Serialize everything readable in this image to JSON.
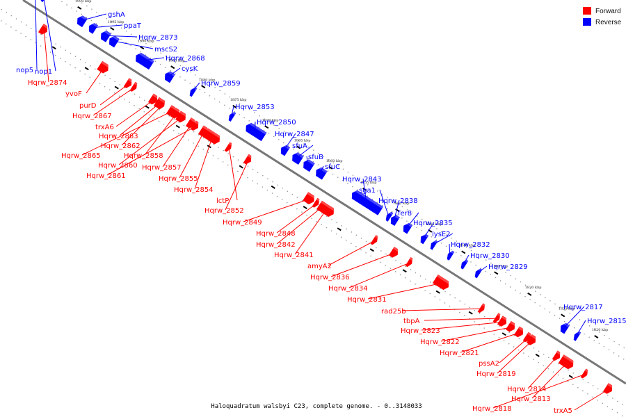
{
  "caption": "Haloquadratum walsbyi C23, complete genome. - 0..3148033",
  "colors": {
    "forward": "#ff0000",
    "reverse": "#0000ff",
    "axis": "#777777",
    "tick": "#000000"
  },
  "legend": [
    {
      "label": "Forward",
      "color": "#ff0000"
    },
    {
      "label": "Reverse",
      "color": "#0000ff"
    }
  ],
  "ticks": [
    "1900 kbp",
    "1895 kbp",
    "1890 kbp",
    "1885 kbp",
    "1880 kbp",
    "1875 kbp",
    "1870 kbp",
    "1865 kbp",
    "1860 kbp",
    "1855 kbp",
    "1850 kbp",
    "1845 kbp",
    "1840 kbp",
    "1835 kbp",
    "1830 kbp",
    "1825 kbp",
    "1820 kbp"
  ],
  "genes": [
    {
      "name": "gshA",
      "strand": "reverse"
    },
    {
      "name": "ppaT",
      "strand": "reverse"
    },
    {
      "name": "Hqrw_2873",
      "strand": "reverse"
    },
    {
      "name": "mscS2",
      "strand": "reverse"
    },
    {
      "name": "nop5",
      "strand": "reverse"
    },
    {
      "name": "nop1",
      "strand": "reverse"
    },
    {
      "name": "Hqrw_2874",
      "strand": "forward"
    },
    {
      "name": "Hqrw_2868",
      "strand": "reverse"
    },
    {
      "name": "cysK",
      "strand": "reverse"
    },
    {
      "name": "yvoF",
      "strand": "forward"
    },
    {
      "name": "Hqrw_2859",
      "strand": "reverse"
    },
    {
      "name": "purD",
      "strand": "forward"
    },
    {
      "name": "Hqrw_2867",
      "strand": "forward"
    },
    {
      "name": "trxA6",
      "strand": "forward"
    },
    {
      "name": "Hqrw_2853",
      "strand": "reverse"
    },
    {
      "name": "Hqrw_2863",
      "strand": "forward"
    },
    {
      "name": "Hqrw_2862",
      "strand": "forward"
    },
    {
      "name": "Hqrw_2850",
      "strand": "reverse"
    },
    {
      "name": "Hqrw_2865",
      "strand": "forward"
    },
    {
      "name": "Hqrw_2858",
      "strand": "forward"
    },
    {
      "name": "Hqrw_2847",
      "strand": "reverse"
    },
    {
      "name": "Hqrw_2860",
      "strand": "forward"
    },
    {
      "name": "Hqrw_2857",
      "strand": "forward"
    },
    {
      "name": "sfuA",
      "strand": "reverse"
    },
    {
      "name": "Hqrw_2861",
      "strand": "forward"
    },
    {
      "name": "sfuB",
      "strand": "reverse"
    },
    {
      "name": "Hqrw_2855",
      "strand": "forward"
    },
    {
      "name": "sfuC",
      "strand": "reverse"
    },
    {
      "name": "Hqrw_2854",
      "strand": "forward"
    },
    {
      "name": "Hqrw_2843",
      "strand": "reverse"
    },
    {
      "name": "sga1",
      "strand": "reverse"
    },
    {
      "name": "lctP",
      "strand": "forward"
    },
    {
      "name": "Hqrw_2852",
      "strand": "forward"
    },
    {
      "name": "Hqrw_2838",
      "strand": "reverse"
    },
    {
      "name": "fer8",
      "strand": "reverse"
    },
    {
      "name": "Hqrw_2849",
      "strand": "forward"
    },
    {
      "name": "Hqrw_2835",
      "strand": "reverse"
    },
    {
      "name": "Hqrw_2848",
      "strand": "forward"
    },
    {
      "name": "lysE2",
      "strand": "reverse"
    },
    {
      "name": "Hqrw_2842",
      "strand": "forward"
    },
    {
      "name": "Hqrw_2832",
      "strand": "reverse"
    },
    {
      "name": "Hqrw_2841",
      "strand": "forward"
    },
    {
      "name": "Hqrw_2830",
      "strand": "reverse"
    },
    {
      "name": "amyA2",
      "strand": "forward"
    },
    {
      "name": "Hqrw_2829",
      "strand": "reverse"
    },
    {
      "name": "Hqrw_2836",
      "strand": "forward"
    },
    {
      "name": "Hqrw_2834",
      "strand": "forward"
    },
    {
      "name": "Hqrw_2831",
      "strand": "forward"
    },
    {
      "name": "rad25b",
      "strand": "forward"
    },
    {
      "name": "Hqrw_2817",
      "strand": "reverse"
    },
    {
      "name": "tbpA",
      "strand": "forward"
    },
    {
      "name": "Hqrw_2815",
      "strand": "reverse"
    },
    {
      "name": "Hqrw_2823",
      "strand": "forward"
    },
    {
      "name": "Hqrw_2822",
      "strand": "forward"
    },
    {
      "name": "Hqrw_2821",
      "strand": "forward"
    },
    {
      "name": "pssA2",
      "strand": "forward"
    },
    {
      "name": "Hqrw_2819",
      "strand": "forward"
    },
    {
      "name": "Hqrw_2814",
      "strand": "forward"
    },
    {
      "name": "Hqrw_2813",
      "strand": "forward"
    },
    {
      "name": "Hqrw_2818",
      "strand": "forward"
    },
    {
      "name": "trxA5",
      "strand": "forward"
    }
  ]
}
